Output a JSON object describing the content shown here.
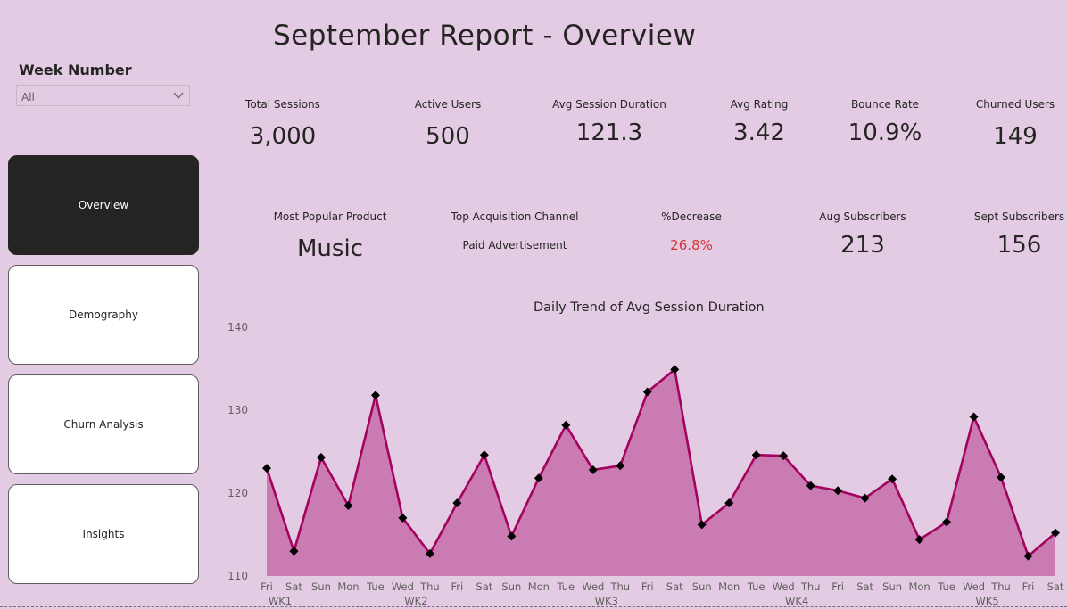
{
  "title": "September Report - Overview",
  "slicer": {
    "title": "Week Number",
    "value": "All"
  },
  "nav": [
    {
      "label": "Overview",
      "active": true
    },
    {
      "label": "Demography",
      "active": false
    },
    {
      "label": "Churn Analysis",
      "active": false
    },
    {
      "label": "Insights",
      "active": false
    }
  ],
  "kpis_row1": [
    {
      "label": "Total Sessions",
      "value": "3,000"
    },
    {
      "label": "Active Users",
      "value": "500"
    },
    {
      "label": "Avg Session Duration",
      "value": "121.3"
    },
    {
      "label": "Avg Rating",
      "value": "3.42"
    },
    {
      "label": "Bounce Rate",
      "value": "10.9%"
    },
    {
      "label": "Churned Users",
      "value": "149"
    }
  ],
  "kpis_row2": [
    {
      "label": "Most Popular Product",
      "value": "Music"
    },
    {
      "label": "Top Acquisition Channel",
      "value": "Paid Advertisement"
    },
    {
      "label": "%Decrease",
      "value": "26.8%"
    },
    {
      "label": "Aug Subscribers",
      "value": "213"
    },
    {
      "label": "Sept Subscribers",
      "value": "156"
    }
  ],
  "colors": {
    "line": "#a3035e",
    "area": "#c97bb2",
    "marker": "#000000",
    "background": "#e3cce3",
    "active_nav": "#252423",
    "decrease": "#d13438"
  },
  "chart_data": {
    "type": "area",
    "title": "Daily Trend of Avg Session Duration",
    "ylim": [
      110,
      140
    ],
    "yticks": [
      110,
      120,
      130,
      140
    ],
    "x": [
      "Fri",
      "Sat",
      "Sun",
      "Mon",
      "Tue",
      "Wed",
      "Thu",
      "Fri",
      "Sat",
      "Sun",
      "Mon",
      "Tue",
      "Wed",
      "Thu",
      "Fri",
      "Sat",
      "Sun",
      "Mon",
      "Tue",
      "Wed",
      "Thu",
      "Fri",
      "Sat",
      "Sun",
      "Mon",
      "Tue",
      "Wed",
      "Thu",
      "Fri",
      "Sat"
    ],
    "week_groups": [
      {
        "label": "WK1",
        "start": 0
      },
      {
        "label": "WK2",
        "start": 5
      },
      {
        "label": "WK3",
        "start": 12
      },
      {
        "label": "WK4",
        "start": 19
      },
      {
        "label": "WK5",
        "start": 26
      }
    ],
    "series": [
      {
        "values": [
          123.0,
          113.0,
          124.3,
          118.5,
          131.8,
          117.0,
          112.7,
          118.8,
          124.6,
          114.8,
          121.8,
          128.2,
          122.8,
          123.3,
          132.2,
          134.9,
          116.2,
          118.8,
          124.6,
          124.5,
          120.9,
          120.3,
          119.4,
          121.7,
          114.4,
          116.5,
          129.2,
          121.9,
          112.4,
          115.2
        ]
      }
    ],
    "grid": false,
    "legend": "none"
  }
}
